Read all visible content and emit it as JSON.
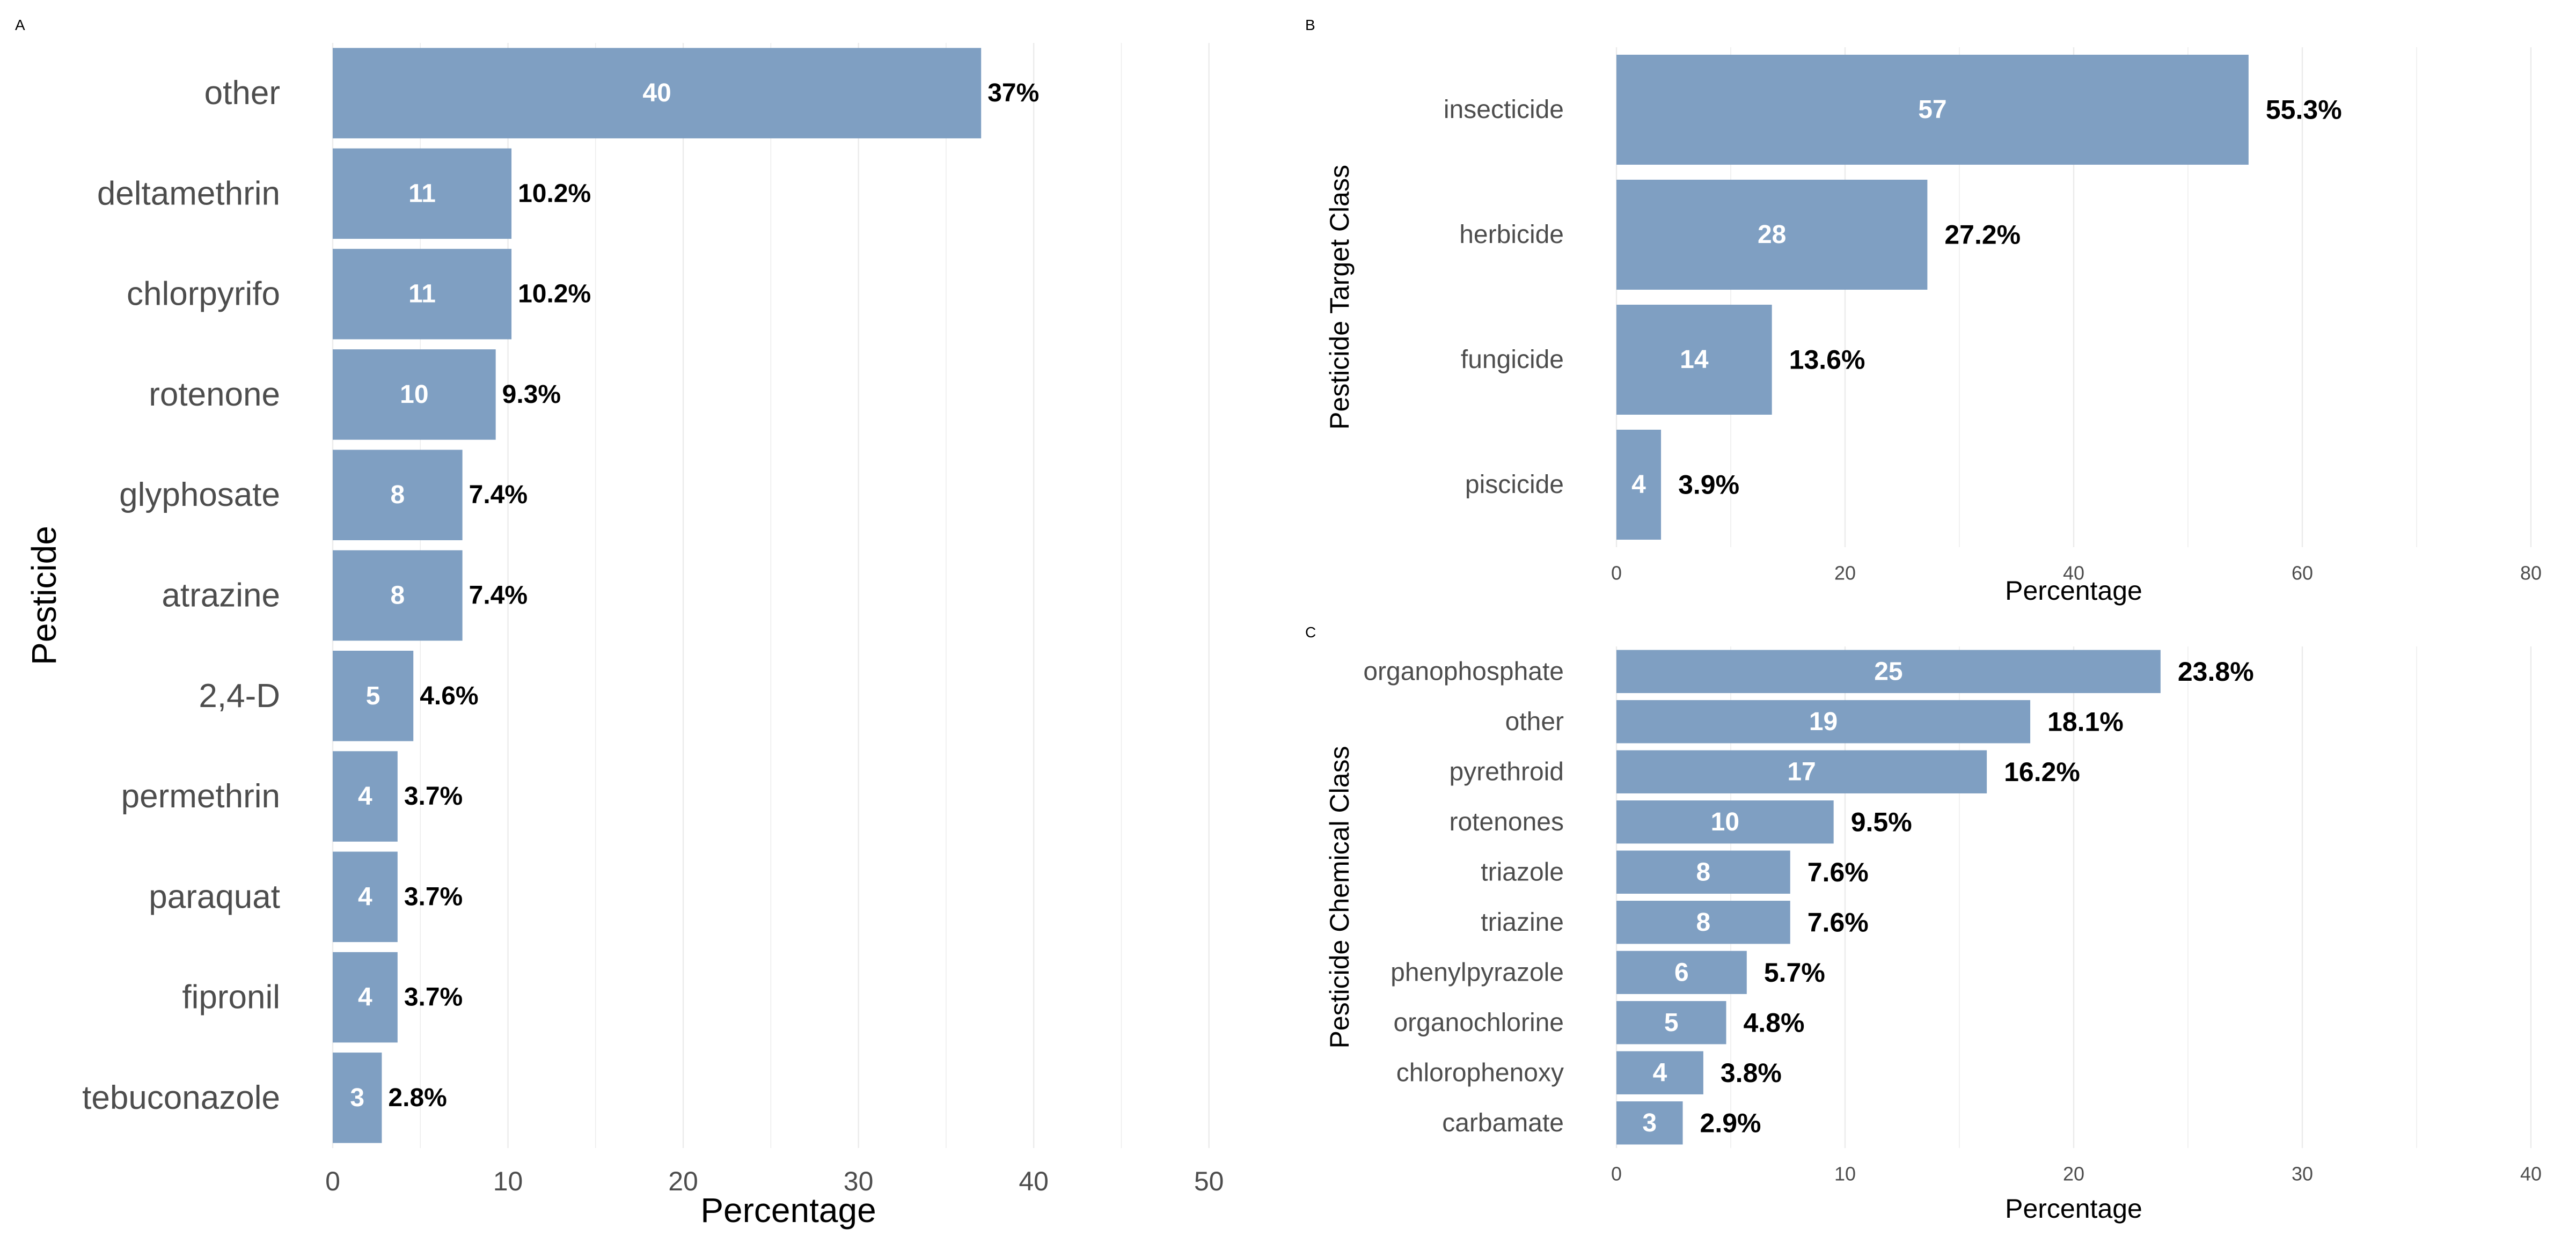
{
  "figure": {
    "bar_color": "#7f9fc2",
    "grid_color": "#ebebeb"
  },
  "chart_data": [
    {
      "tag": "A",
      "type": "bar",
      "orientation": "horizontal",
      "categories": [
        "other",
        "deltamethrin",
        "chlorpyrifo",
        "rotenone",
        "glyphosate",
        "atrazine",
        "2,4-D",
        "permethrin",
        "paraquat",
        "fipronil",
        "tebuconazole"
      ],
      "values": [
        37,
        10.2,
        10.2,
        9.3,
        7.4,
        7.4,
        4.6,
        3.7,
        3.7,
        3.7,
        2.8
      ],
      "counts": [
        "40",
        "11",
        "11",
        "10",
        "8",
        "8",
        "5",
        "4",
        "4",
        "4",
        "3"
      ],
      "value_labels": [
        "37%",
        "10.2%",
        "10.2%",
        "9.3%",
        "7.4%",
        "7.4%",
        "4.6%",
        "3.7%",
        "3.7%",
        "3.7%",
        "2.8%"
      ],
      "xlabel": "Percentage",
      "ylabel": "Pesticide",
      "xlim": [
        0,
        52
      ],
      "xticks": [
        0,
        10,
        20,
        30,
        40,
        50
      ],
      "grid": true
    },
    {
      "tag": "B",
      "type": "bar",
      "orientation": "horizontal",
      "categories": [
        "insecticide",
        "herbicide",
        "fungicide",
        "piscicide"
      ],
      "values": [
        55.3,
        27.2,
        13.6,
        3.9
      ],
      "counts": [
        "57",
        "28",
        "14",
        "4"
      ],
      "value_labels": [
        "55.3%",
        "27.2%",
        "13.6%",
        "3.9%"
      ],
      "xlabel": "Percentage",
      "ylabel": "Pesticide Target Class",
      "xlim": [
        0,
        80
      ],
      "xticks": [
        0,
        20,
        40,
        60,
        80
      ],
      "grid": true
    },
    {
      "tag": "C",
      "type": "bar",
      "orientation": "horizontal",
      "categories": [
        "organophosphate",
        "other",
        "pyrethroid",
        "rotenones",
        "triazole",
        "triazine",
        "phenylpyrazole",
        "organochlorine",
        "chlorophenoxy",
        "carbamate"
      ],
      "values": [
        23.8,
        18.1,
        16.2,
        9.5,
        7.6,
        7.6,
        5.7,
        4.8,
        3.8,
        2.9
      ],
      "counts": [
        "25",
        "19",
        "17",
        "10",
        "8",
        "8",
        "6",
        "5",
        "4",
        "3"
      ],
      "value_labels": [
        "23.8%",
        "18.1%",
        "16.2%",
        "9.5%",
        "7.6%",
        "7.6%",
        "5.7%",
        "4.8%",
        "3.8%",
        "2.9%"
      ],
      "xlabel": "Percentage",
      "ylabel": "Pesticide Chemical Class",
      "xlim": [
        0,
        40
      ],
      "xticks": [
        0,
        10,
        20,
        30,
        40
      ],
      "grid": true
    }
  ]
}
